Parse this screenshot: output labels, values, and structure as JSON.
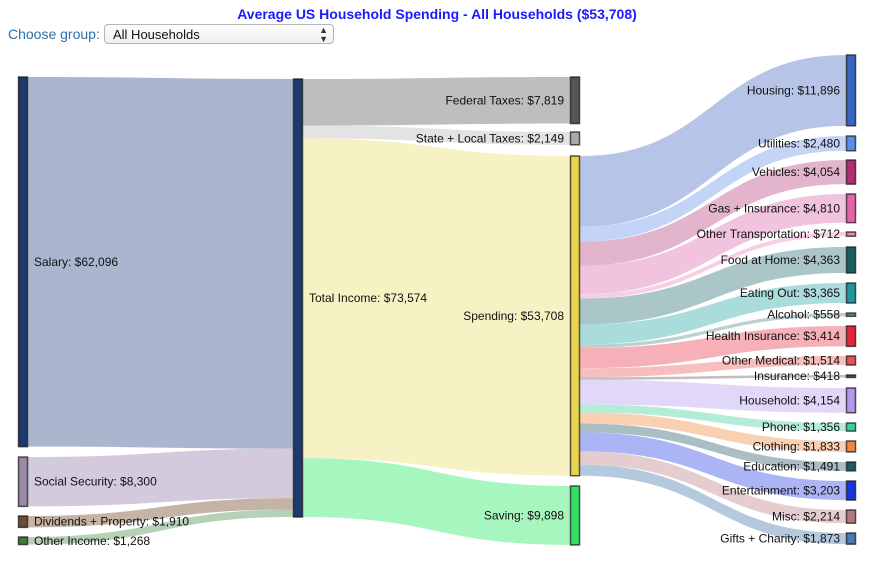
{
  "header": {
    "title": "Average US Household Spending - All Households ($53,708)",
    "choose_label": "Choose group:",
    "group_select": {
      "selected": "All Households"
    }
  },
  "chart_data": {
    "type": "sankey",
    "title": "Average US Household Spending - All Households ($53,708)",
    "currency": "$",
    "nodes": [
      {
        "id": "salary",
        "label": "Salary",
        "value": 62096,
        "color": "#1f3a6e",
        "link_color": "#9aa9c4",
        "column": 0
      },
      {
        "id": "ss",
        "label": "Social Security",
        "value": 8300,
        "color": "#9b89a9",
        "link_color": "#cbc1d8",
        "column": 0
      },
      {
        "id": "div",
        "label": "Dividends + Property",
        "value": 1910,
        "color": "#6b4e36",
        "link_color": "#bba795",
        "column": 0
      },
      {
        "id": "other_inc",
        "label": "Other Income",
        "value": 1268,
        "color": "#3f7a3f",
        "link_color": "#a9c9a9",
        "column": 0
      },
      {
        "id": "total",
        "label": "Total Income",
        "value": 73574,
        "color": "#1f3a6e",
        "column": 1
      },
      {
        "id": "fed",
        "label": "Federal Taxes",
        "value": 7819,
        "color": "#555555",
        "link_color": "#b3b3b3",
        "column": 2
      },
      {
        "id": "state",
        "label": "State + Local Taxes",
        "value": 2149,
        "color": "#aaaaaa",
        "link_color": "#dedede",
        "column": 2
      },
      {
        "id": "spending",
        "label": "Spending",
        "value": 53708,
        "color": "#e8d44d",
        "link_color": "#f5f0b9",
        "column": 2
      },
      {
        "id": "saving",
        "label": "Saving",
        "value": 9898,
        "color": "#33e066",
        "link_color": "#99f5b4",
        "column": 2
      },
      {
        "id": "housing",
        "label": "Housing",
        "value": 11896,
        "color": "#3a66c0",
        "link_color": "#a9bbe3",
        "column": 3
      },
      {
        "id": "utilities",
        "label": "Utilities",
        "value": 2480,
        "color": "#5b8de8",
        "link_color": "#b9cdf5",
        "column": 3
      },
      {
        "id": "vehicles",
        "label": "Vehicles",
        "value": 4054,
        "color": "#b0306f",
        "link_color": "#dda8c3",
        "column": 3
      },
      {
        "id": "gas",
        "label": "Gas + Insurance",
        "value": 4810,
        "color": "#e066a8",
        "link_color": "#f0b8d8",
        "column": 3
      },
      {
        "id": "other_transp",
        "label": "Other Transportation",
        "value": 712,
        "color": "#e88ab8",
        "link_color": "#f5c8dd",
        "column": 3
      },
      {
        "id": "food_home",
        "label": "Food at Home",
        "value": 4363,
        "color": "#1d5f5f",
        "link_color": "#9bbcbc",
        "column": 3
      },
      {
        "id": "eating_out",
        "label": "Eating Out",
        "value": 3365,
        "color": "#20969a",
        "link_color": "#9cd6d6",
        "column": 3
      },
      {
        "id": "alcohol",
        "label": "Alcohol",
        "value": 558,
        "color": "#5a8a8a",
        "link_color": "#b0c8c8",
        "column": 3
      },
      {
        "id": "health_ins",
        "label": "Health Insurance",
        "value": 3414,
        "color": "#e0283a",
        "link_color": "#f4a3ab",
        "column": 3
      },
      {
        "id": "other_med",
        "label": "Other Medical",
        "value": 1514,
        "color": "#e05555",
        "link_color": "#f4b3b3",
        "column": 3
      },
      {
        "id": "insurance",
        "label": "Insurance",
        "value": 418,
        "color": "#555555",
        "link_color": "#b7b3b3",
        "column": 3
      },
      {
        "id": "household",
        "label": "Household",
        "value": 4154,
        "color": "#b39ae8",
        "link_color": "#dcd0f8",
        "column": 3
      },
      {
        "id": "phone",
        "label": "Phone",
        "value": 1356,
        "color": "#40d095",
        "link_color": "#a6ead0",
        "column": 3
      },
      {
        "id": "clothing",
        "label": "Clothing",
        "value": 1833,
        "color": "#f08840",
        "link_color": "#f8c8a5",
        "column": 3
      },
      {
        "id": "education",
        "label": "Education",
        "value": 1491,
        "color": "#1f5a6a",
        "link_color": "#9bb3b8",
        "column": 3
      },
      {
        "id": "entertainment",
        "label": "Entertainment",
        "value": 3203,
        "color": "#1a35e0",
        "link_color": "#9ca8f4",
        "column": 3
      },
      {
        "id": "misc",
        "label": "Misc",
        "value": 2214,
        "color": "#b07a80",
        "link_color": "#e0c3c5",
        "column": 3
      },
      {
        "id": "gifts",
        "label": "Gifts + Charity",
        "value": 1873,
        "color": "#4a7ab0",
        "link_color": "#a8c0d8",
        "column": 3
      }
    ],
    "links": [
      {
        "source": "salary",
        "target": "total",
        "value": 62096
      },
      {
        "source": "ss",
        "target": "total",
        "value": 8300
      },
      {
        "source": "div",
        "target": "total",
        "value": 1910
      },
      {
        "source": "other_inc",
        "target": "total",
        "value": 1268
      },
      {
        "source": "total",
        "target": "fed",
        "value": 7819
      },
      {
        "source": "total",
        "target": "state",
        "value": 2149
      },
      {
        "source": "total",
        "target": "spending",
        "value": 53708
      },
      {
        "source": "total",
        "target": "saving",
        "value": 9898
      },
      {
        "source": "spending",
        "target": "housing",
        "value": 11896
      },
      {
        "source": "spending",
        "target": "utilities",
        "value": 2480
      },
      {
        "source": "spending",
        "target": "vehicles",
        "value": 4054
      },
      {
        "source": "spending",
        "target": "gas",
        "value": 4810
      },
      {
        "source": "spending",
        "target": "other_transp",
        "value": 712
      },
      {
        "source": "spending",
        "target": "food_home",
        "value": 4363
      },
      {
        "source": "spending",
        "target": "eating_out",
        "value": 3365
      },
      {
        "source": "spending",
        "target": "alcohol",
        "value": 558
      },
      {
        "source": "spending",
        "target": "health_ins",
        "value": 3414
      },
      {
        "source": "spending",
        "target": "other_med",
        "value": 1514
      },
      {
        "source": "spending",
        "target": "insurance",
        "value": 418
      },
      {
        "source": "spending",
        "target": "household",
        "value": 4154
      },
      {
        "source": "spending",
        "target": "phone",
        "value": 1356
      },
      {
        "source": "spending",
        "target": "clothing",
        "value": 1833
      },
      {
        "source": "spending",
        "target": "education",
        "value": 1491
      },
      {
        "source": "spending",
        "target": "entertainment",
        "value": 3203
      },
      {
        "source": "spending",
        "target": "misc",
        "value": 2214
      },
      {
        "source": "spending",
        "target": "gifts",
        "value": 1873
      }
    ]
  }
}
